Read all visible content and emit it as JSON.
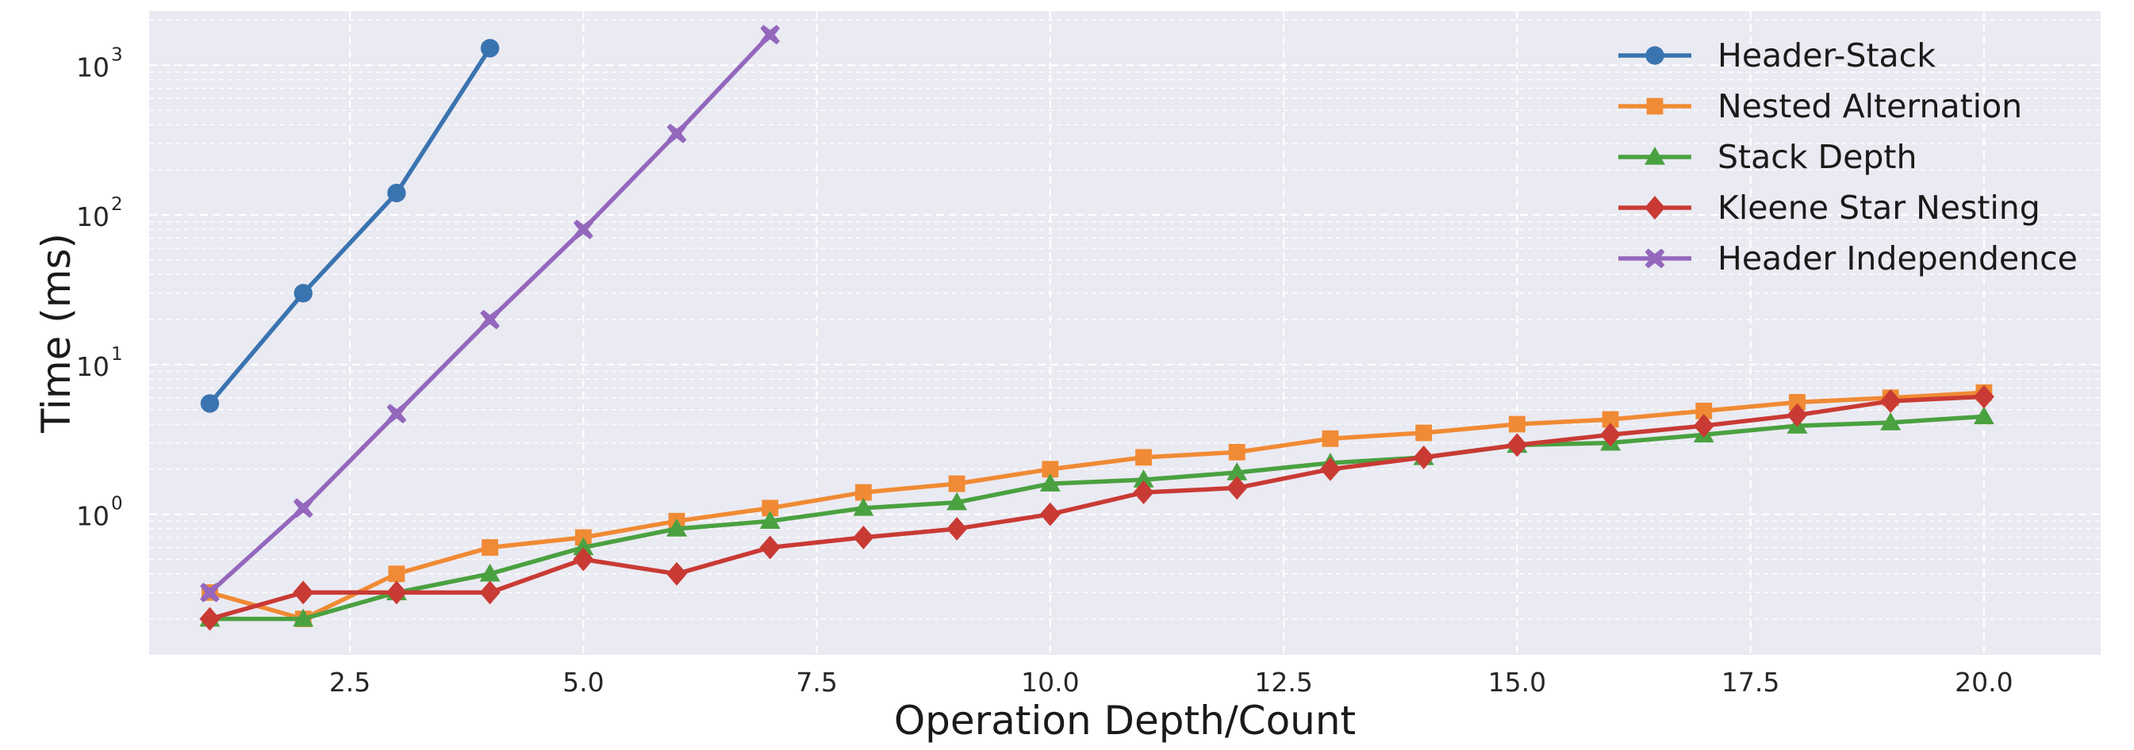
{
  "chart_data": {
    "type": "line",
    "title": "",
    "xlabel": "Operation Depth/Count",
    "ylabel": "Time (ms)",
    "x_scale": "linear",
    "y_scale": "log",
    "xlim": [
      0.35,
      21.25
    ],
    "ylim": [
      0.115,
      2300
    ],
    "x_ticks": [
      2.5,
      5.0,
      7.5,
      10.0,
      12.5,
      15.0,
      17.5,
      20.0
    ],
    "x_tick_labels": [
      "2.5",
      "5.0",
      "7.5",
      "10.0",
      "12.5",
      "15.0",
      "17.5",
      "20.0"
    ],
    "y_ticks": [
      1,
      10,
      100,
      1000
    ],
    "y_tick_labels": [
      {
        "base": "10",
        "exp": "0"
      },
      {
        "base": "10",
        "exp": "1"
      },
      {
        "base": "10",
        "exp": "2"
      },
      {
        "base": "10",
        "exp": "3"
      }
    ],
    "grid": true,
    "legend_position": "top-right",
    "series": [
      {
        "name": "Header-Stack",
        "color": "#3a74b0",
        "marker": "circle",
        "x": [
          1,
          2,
          3,
          4
        ],
        "y": [
          5.5,
          30,
          140,
          1300
        ]
      },
      {
        "name": "Nested Alternation",
        "color": "#f08a34",
        "marker": "square",
        "x": [
          1,
          2,
          3,
          4,
          5,
          6,
          7,
          8,
          9,
          10,
          11,
          12,
          13,
          14,
          15,
          16,
          17,
          18,
          19,
          20
        ],
        "y": [
          0.3,
          0.2,
          0.4,
          0.6,
          0.7,
          0.9,
          1.1,
          1.4,
          1.6,
          2.0,
          2.4,
          2.6,
          3.2,
          3.5,
          4.0,
          4.3,
          4.9,
          5.6,
          6.0,
          6.5
        ]
      },
      {
        "name": "Stack Depth",
        "color": "#4aa140",
        "marker": "triangle",
        "x": [
          1,
          2,
          3,
          4,
          5,
          6,
          7,
          8,
          9,
          10,
          11,
          12,
          13,
          14,
          15,
          16,
          17,
          18,
          19,
          20
        ],
        "y": [
          0.2,
          0.2,
          0.3,
          0.4,
          0.6,
          0.8,
          0.9,
          1.1,
          1.2,
          1.6,
          1.7,
          1.9,
          2.2,
          2.4,
          2.9,
          3.0,
          3.4,
          3.9,
          4.1,
          4.5
        ]
      },
      {
        "name": "Kleene Star Nesting",
        "color": "#c93a34",
        "marker": "diamond",
        "x": [
          1,
          2,
          3,
          4,
          5,
          6,
          7,
          8,
          9,
          10,
          11,
          12,
          13,
          14,
          15,
          16,
          17,
          18,
          19,
          20
        ],
        "y": [
          0.2,
          0.3,
          0.3,
          0.3,
          0.5,
          0.4,
          0.6,
          0.7,
          0.8,
          1.0,
          1.4,
          1.5,
          2.0,
          2.4,
          2.9,
          3.4,
          3.9,
          4.6,
          5.7,
          6.1
        ]
      },
      {
        "name": "Header Independence",
        "color": "#9467bd",
        "marker": "x",
        "x": [
          1,
          2,
          3,
          4,
          5,
          6,
          7
        ],
        "y": [
          0.3,
          1.1,
          4.7,
          20,
          80,
          350,
          1600
        ]
      }
    ]
  }
}
